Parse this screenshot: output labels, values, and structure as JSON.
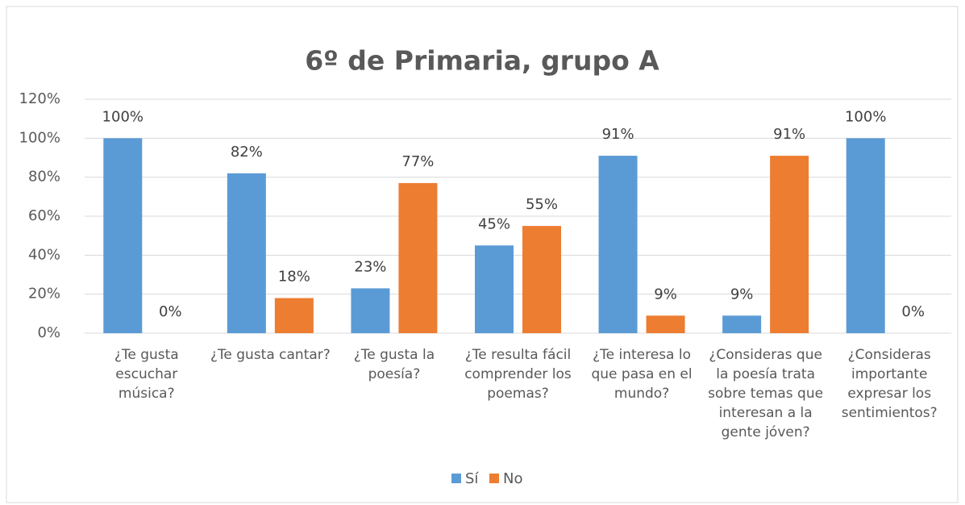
{
  "chart_data": {
    "type": "bar",
    "title": "6º de Primaria, grupo A",
    "categories": [
      "¿Te gusta escuchar música?",
      "¿Te gusta cantar?",
      "¿Te gusta la poesía?",
      "¿Te resulta fácil comprender los poemas?",
      "¿Te interesa lo que pasa en el mundo?",
      "¿Consideras que la poesía trata sobre temas que interesan a la gente jóven?",
      "¿Consideras importante expresar los sentimientos?"
    ],
    "series": [
      {
        "name": "Sí",
        "color": "#5b9bd5",
        "values": [
          100,
          82,
          23,
          45,
          91,
          9,
          100
        ],
        "value_labels": [
          "100%",
          "82%",
          "23%",
          "45%",
          "91%",
          "9%",
          "100%"
        ]
      },
      {
        "name": "No",
        "color": "#ed7d31",
        "values": [
          0,
          18,
          77,
          55,
          9,
          91,
          0
        ],
        "value_labels": [
          "0%",
          "18%",
          "77%",
          "55%",
          "9%",
          "91%",
          "0%"
        ]
      }
    ],
    "ylim": [
      0,
      120
    ],
    "yticks": [
      {
        "value": 0,
        "label": "0%"
      },
      {
        "value": 20,
        "label": "20%"
      },
      {
        "value": 40,
        "label": "40%"
      },
      {
        "value": 60,
        "label": "60%"
      },
      {
        "value": 80,
        "label": "80%"
      },
      {
        "value": 100,
        "label": "100%"
      },
      {
        "value": 120,
        "label": "120%"
      }
    ],
    "grid": true,
    "legend": "bottom"
  }
}
